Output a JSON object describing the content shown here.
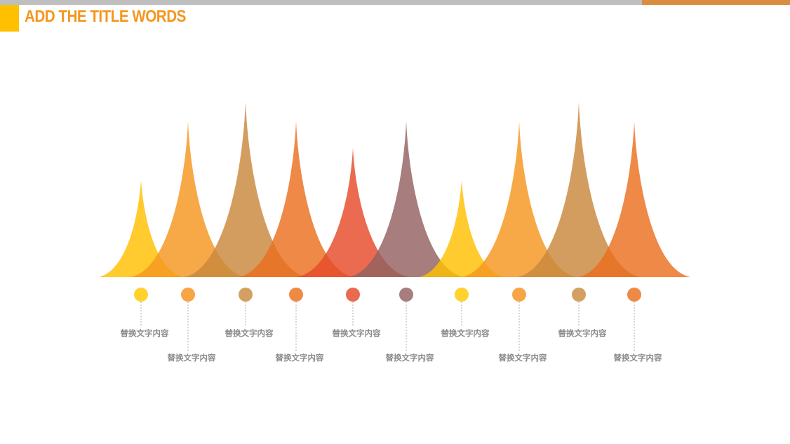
{
  "slide": {
    "title": "ADD THE TITLE WORDS",
    "title_color": "#f5961e",
    "accent_colors": {
      "top_bar": "#bfbfbf",
      "top_bar_accent": "#d98e3f",
      "title_block": "#ffc000"
    }
  },
  "peaks": [
    {
      "label": "替换文字内容",
      "color": "#ffc000",
      "dot_color": "#ffd22e"
    },
    {
      "label": "替换文字内容",
      "color": "#f5961e",
      "dot_color": "#f7a545"
    },
    {
      "label": "替换文字内容",
      "color": "#c9883d",
      "dot_color": "#d4a062"
    },
    {
      "label": "替换文字内容",
      "color": "#ea6f1e",
      "dot_color": "#ee8a45"
    },
    {
      "label": "替换文字内容",
      "color": "#e54b2a",
      "dot_color": "#e96a4f"
    },
    {
      "label": "替换文字内容",
      "color": "#946160",
      "dot_color": "#a67e7d"
    },
    {
      "label": "替换文字内容",
      "color": "#ffc000",
      "dot_color": "#ffd22e"
    },
    {
      "label": "替换文字内容",
      "color": "#f5961e",
      "dot_color": "#f7a545"
    },
    {
      "label": "替换文字内容",
      "color": "#c9883d",
      "dot_color": "#d4a062"
    },
    {
      "label": "替换文字内容",
      "color": "#ea6f1e",
      "dot_color": "#ee8a45"
    }
  ]
}
